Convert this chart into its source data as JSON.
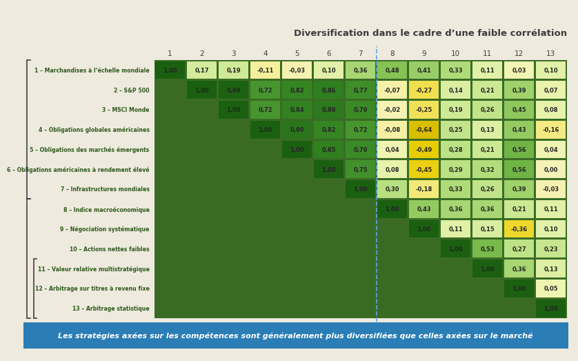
{
  "title": "Diversification dans le cadre d’une faible corrélation",
  "footer": "Les stratégies axées sur les compétences sont généralement plus diversifiées que celles axées sur le marché",
  "col_labels": [
    "1",
    "2",
    "3",
    "4",
    "5",
    "6",
    "7",
    "8",
    "9",
    "10",
    "11",
    "12",
    "13"
  ],
  "row_labels": [
    "1 – Marchandises à l’échelle mondiale",
    "2 – S&P 500",
    "3 – MSCI Monde",
    "4 – Obligations globales américaines",
    "5 – Obligations des marchés émergents",
    "6 – Obligations américaines à rendement élevé",
    "7 – Infrastructures mondiales",
    "8 – Indice macroéconomique",
    "9 – Négociation systématique",
    "10 – Actions nettes faibles",
    "11 – Valeur relative multistratégique",
    "12 – Arbitrage sur titres à revenu fixe",
    "13 – Arbitrage statistique"
  ],
  "matrix": [
    [
      1.0,
      0.17,
      0.19,
      -0.11,
      -0.03,
      0.1,
      0.36,
      0.48,
      0.41,
      0.33,
      0.11,
      0.03,
      0.1
    ],
    [
      null,
      1.0,
      0.99,
      0.72,
      0.82,
      0.86,
      0.77,
      -0.07,
      -0.27,
      0.14,
      0.21,
      0.39,
      0.07
    ],
    [
      null,
      null,
      1.0,
      0.72,
      0.84,
      0.88,
      0.79,
      -0.02,
      -0.25,
      0.19,
      0.26,
      0.45,
      0.08
    ],
    [
      null,
      null,
      null,
      1.0,
      0.9,
      0.82,
      0.72,
      -0.08,
      -0.64,
      0.25,
      0.13,
      0.43,
      -0.16
    ],
    [
      null,
      null,
      null,
      null,
      1.0,
      0.85,
      0.79,
      0.04,
      -0.49,
      0.28,
      0.21,
      0.56,
      0.04
    ],
    [
      null,
      null,
      null,
      null,
      null,
      1.0,
      0.75,
      0.08,
      -0.45,
      0.29,
      0.32,
      0.56,
      0.0
    ],
    [
      null,
      null,
      null,
      null,
      null,
      null,
      1.0,
      0.3,
      -0.18,
      0.33,
      0.26,
      0.39,
      -0.03
    ],
    [
      null,
      null,
      null,
      null,
      null,
      null,
      null,
      1.0,
      0.43,
      0.36,
      0.36,
      0.21,
      0.11
    ],
    [
      null,
      null,
      null,
      null,
      null,
      null,
      null,
      null,
      1.0,
      0.11,
      0.15,
      -0.36,
      0.1
    ],
    [
      null,
      null,
      null,
      null,
      null,
      null,
      null,
      null,
      null,
      1.0,
      0.53,
      0.27,
      0.23
    ],
    [
      null,
      null,
      null,
      null,
      null,
      null,
      null,
      null,
      null,
      null,
      1.0,
      0.36,
      0.13
    ],
    [
      null,
      null,
      null,
      null,
      null,
      null,
      null,
      null,
      null,
      null,
      null,
      1.0,
      0.05
    ],
    [
      null,
      null,
      null,
      null,
      null,
      null,
      null,
      null,
      null,
      null,
      null,
      null,
      1.0
    ]
  ],
  "background_color": "#eeeade",
  "table_bg_color": "#3a6b25",
  "title_color": "#3c3c3c",
  "label_color": "#2d5a1b",
  "col_label_color": "#3c3c3c",
  "footer_bg": "#2a7db5",
  "footer_text_color": "#ffffff",
  "divider_col": 7,
  "colors_nodes": [
    [
      -0.7,
      "#d4b800"
    ],
    [
      -0.5,
      "#e8cc00"
    ],
    [
      -0.3,
      "#f0dc40"
    ],
    [
      -0.1,
      "#f5f0a0"
    ],
    [
      0.0,
      "#f5f2b8"
    ],
    [
      0.05,
      "#eef5b0"
    ],
    [
      0.15,
      "#d8eda0"
    ],
    [
      0.3,
      "#b8e080"
    ],
    [
      0.5,
      "#80c050"
    ],
    [
      0.7,
      "#4a9830"
    ],
    [
      0.85,
      "#308020"
    ],
    [
      1.0,
      "#1a6010"
    ]
  ]
}
